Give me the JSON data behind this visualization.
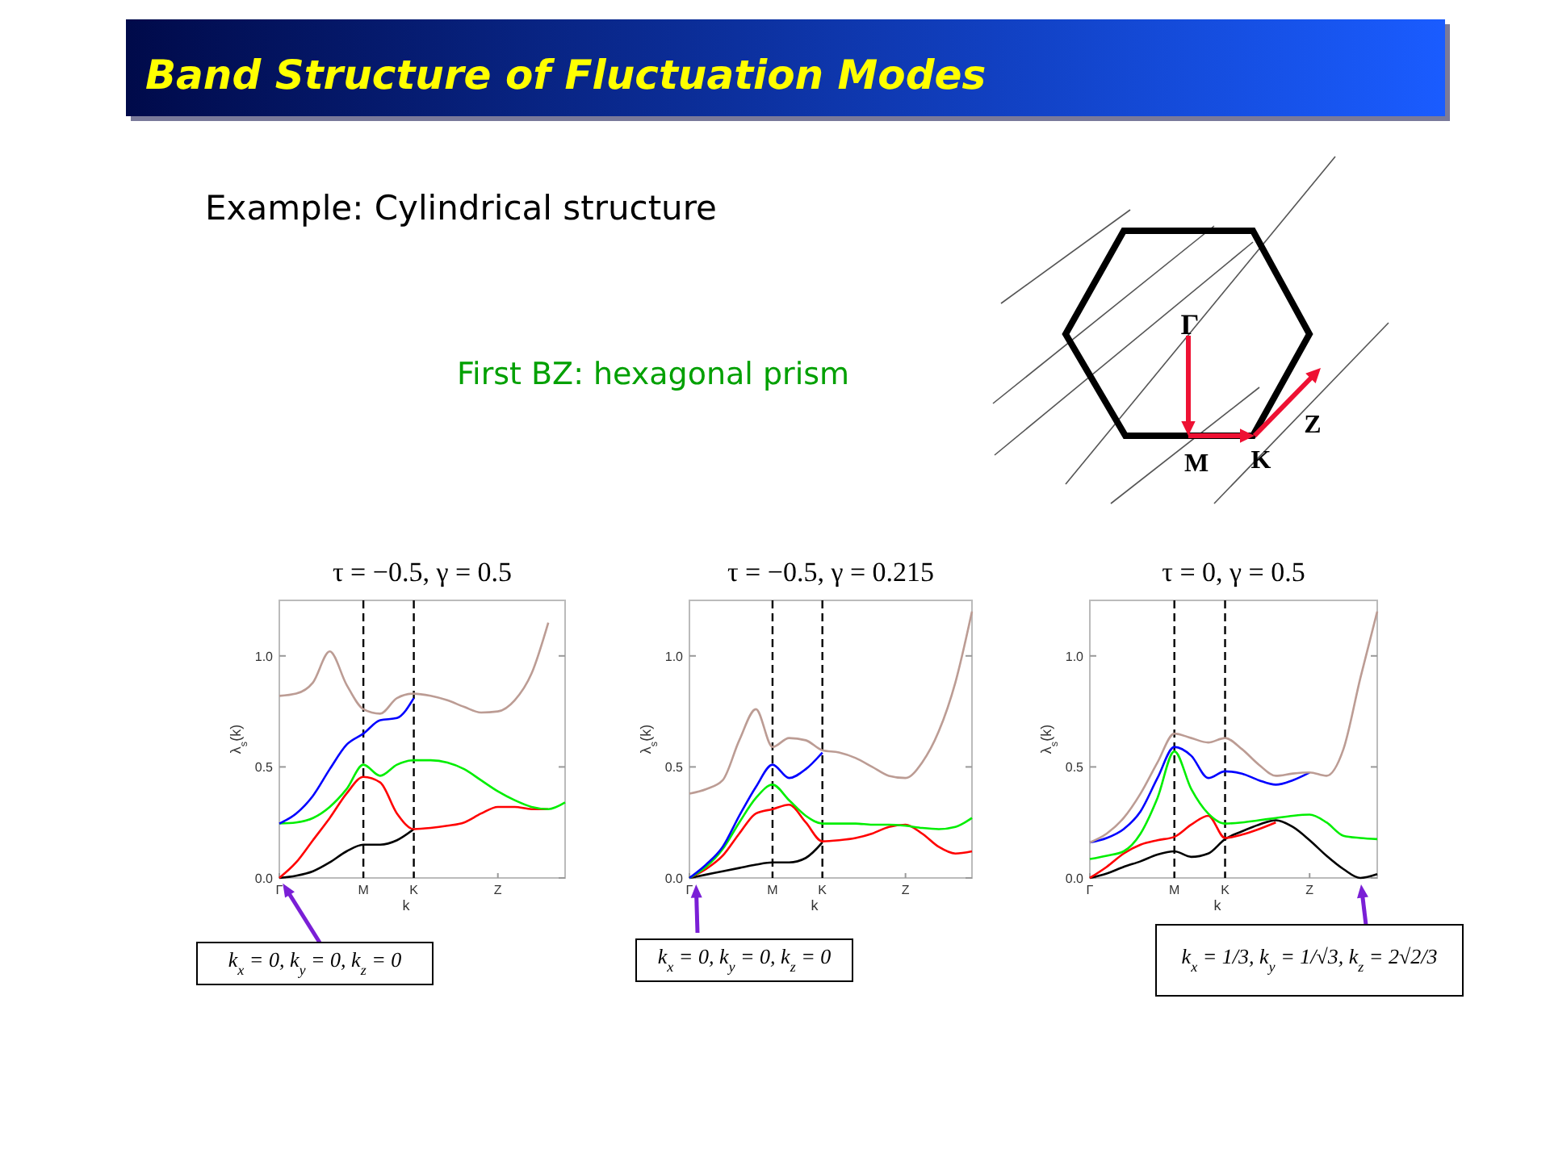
{
  "chart_data": [
    {
      "type": "line",
      "title": "τ = −0.5, γ = 0.5",
      "xlabel": "k",
      "ylabel": "λ$_{s}$(k)",
      "ylim": [
        0,
        1.25
      ],
      "categories": [
        "Γ",
        null,
        null,
        null,
        null,
        "M",
        null,
        null,
        "K",
        null,
        null,
        null,
        null,
        "Z",
        null,
        null,
        null,
        null
      ],
      "yticks": [
        {
          "value": 0,
          "label": "0.0"
        },
        {
          "value": 0.5,
          "label": "0.5"
        },
        {
          "value": 1,
          "label": "1.0"
        }
      ],
      "ref_lines": [
        {
          "axis": "x",
          "value": "M",
          "color": "#000000",
          "line_style": "dashed"
        },
        {
          "axis": "x",
          "value": "K",
          "color": "#000000",
          "line_style": "dashed"
        }
      ],
      "series": [
        {
          "color": "#000000",
          "values": [
            0,
            0.01,
            0.03,
            0.07,
            0.12,
            0.15,
            0.15,
            0.17,
            0.22,
            null,
            null,
            null,
            null,
            null,
            null,
            null,
            null,
            null
          ]
        },
        {
          "color": "#ff0000",
          "values": [
            0,
            0.07,
            0.17,
            0.27,
            0.38,
            0.455,
            0.43,
            0.29,
            0.22,
            0.225,
            0.235,
            0.25,
            0.29,
            0.32,
            0.32,
            0.31,
            0.31,
            null
          ]
        },
        {
          "color": "#00ee00",
          "values": [
            0.245,
            0.25,
            0.27,
            0.32,
            0.4,
            0.51,
            0.46,
            0.51,
            0.53,
            0.53,
            0.52,
            0.49,
            0.44,
            0.39,
            0.35,
            0.32,
            0.31,
            0.34
          ]
        },
        {
          "color": "#0000ff",
          "values": [
            0.245,
            0.29,
            0.37,
            0.49,
            0.6,
            0.65,
            0.71,
            0.72,
            0.81,
            null,
            null,
            null,
            null,
            null,
            null,
            null,
            null,
            null
          ]
        },
        {
          "color": "#bc9c94",
          "values": [
            0.82,
            0.83,
            0.88,
            1.02,
            0.87,
            0.76,
            0.74,
            0.81,
            0.83,
            0.82,
            0.8,
            0.77,
            0.745,
            0.75,
            0.8,
            0.92,
            1.15,
            null
          ]
        }
      ],
      "annotations": [
        "Band Structure of Fluctuation Modes",
        "Example: Cylindrical structure",
        "First BZ: hexagonal prism",
        "Γ",
        "M",
        "K",
        "Z",
        "k$_{x}$ = 0, k$_{y}$ = 0, k$_{z}$ = 0"
      ]
    },
    {
      "type": "line",
      "title": "τ = −0.5, γ = 0.215",
      "xlabel": "k",
      "ylabel": "λ$_{s}$(k)",
      "ylim": [
        0,
        1.25
      ],
      "categories": [
        "Γ",
        null,
        null,
        null,
        null,
        "M",
        null,
        null,
        "K",
        null,
        null,
        null,
        null,
        "Z",
        null,
        null,
        null,
        null
      ],
      "yticks": [
        {
          "value": 0,
          "label": "0.0"
        },
        {
          "value": 0.5,
          "label": "0.5"
        },
        {
          "value": 1,
          "label": "1.0"
        }
      ],
      "ref_lines": [
        {
          "axis": "x",
          "value": "M",
          "color": "#000000",
          "line_style": "dashed"
        },
        {
          "axis": "x",
          "value": "K",
          "color": "#000000",
          "line_style": "dashed"
        }
      ],
      "series": [
        {
          "color": "#000000",
          "values": [
            0,
            0.015,
            0.03,
            0.045,
            0.06,
            0.07,
            0.07,
            0.09,
            0.16,
            null,
            null,
            null,
            null,
            null,
            null,
            null,
            null,
            null
          ]
        },
        {
          "color": "#ff0000",
          "values": [
            0,
            0.04,
            0.1,
            0.2,
            0.29,
            0.31,
            0.33,
            0.25,
            0.165,
            0.17,
            0.18,
            0.2,
            0.23,
            0.24,
            0.2,
            0.14,
            0.11,
            0.12
          ]
        },
        {
          "color": "#00ee00",
          "values": [
            0,
            0.05,
            0.13,
            0.25,
            0.36,
            0.42,
            0.35,
            0.28,
            0.245,
            0.245,
            0.245,
            0.24,
            0.24,
            0.235,
            0.225,
            0.22,
            0.23,
            0.27
          ]
        },
        {
          "color": "#0000ff",
          "values": [
            0,
            0.06,
            0.14,
            0.28,
            0.41,
            0.51,
            0.45,
            0.49,
            0.565,
            null,
            null,
            null,
            null,
            null,
            null,
            null,
            null,
            null
          ]
        },
        {
          "color": "#bc9c94",
          "values": [
            0.38,
            0.4,
            0.44,
            0.62,
            0.76,
            0.59,
            0.63,
            0.62,
            0.575,
            0.565,
            0.54,
            0.5,
            0.46,
            0.45,
            0.52,
            0.66,
            0.88,
            1.2
          ]
        }
      ],
      "annotations": [
        "k$_{x}$ = 0, k$_{y}$ = 0, k$_{z}$ = 0"
      ]
    },
    {
      "type": "line",
      "title": "τ = 0, γ = 0.5",
      "xlabel": "k",
      "ylabel": "λ$_{s}$(k)",
      "ylim": [
        0,
        1.25
      ],
      "categories": [
        "Γ",
        null,
        null,
        null,
        null,
        "M",
        null,
        null,
        "K",
        null,
        null,
        null,
        null,
        "Z",
        null,
        null,
        null,
        null
      ],
      "yticks": [
        {
          "value": 0,
          "label": "0.0"
        },
        {
          "value": 0.5,
          "label": "0.5"
        },
        {
          "value": 1,
          "label": "1.0"
        }
      ],
      "ref_lines": [
        {
          "axis": "x",
          "value": "M",
          "color": "#000000",
          "line_style": "dashed"
        },
        {
          "axis": "x",
          "value": "K",
          "color": "#000000",
          "line_style": "dashed"
        }
      ],
      "series": [
        {
          "color": "#000000",
          "values": [
            0,
            0.02,
            0.05,
            0.075,
            0.105,
            0.12,
            0.095,
            0.11,
            0.175,
            0.21,
            0.24,
            0.26,
            0.23,
            0.17,
            0.1,
            0.04,
            0,
            0.017
          ]
        },
        {
          "color": "#ff0000",
          "values": [
            0,
            0.05,
            0.11,
            0.15,
            0.17,
            0.185,
            0.24,
            0.28,
            0.18,
            0.195,
            0.22,
            0.25,
            null,
            null,
            null,
            null,
            null,
            null
          ]
        },
        {
          "color": "#00ee00",
          "values": [
            0.085,
            0.1,
            0.12,
            0.2,
            0.36,
            0.57,
            0.4,
            0.29,
            0.245,
            0.25,
            0.26,
            0.27,
            0.28,
            0.285,
            0.25,
            0.19,
            0.18,
            0.175
          ]
        },
        {
          "color": "#0000ff",
          "values": [
            0.16,
            0.18,
            0.22,
            0.3,
            0.45,
            0.59,
            0.55,
            0.45,
            0.48,
            0.47,
            0.44,
            0.42,
            0.44,
            0.475,
            null,
            null,
            null,
            null
          ]
        },
        {
          "color": "#bc9c94",
          "values": [
            0.16,
            0.2,
            0.27,
            0.38,
            0.52,
            0.65,
            0.63,
            0.61,
            0.63,
            0.58,
            0.51,
            0.46,
            0.47,
            0.475,
            0.46,
            0.58,
            0.9,
            1.2
          ]
        }
      ],
      "annotations": [
        "k$_{x}$ = 1/3, k$_{y}$ = 1/√3, k$_{z}$ = 2√2/3"
      ]
    }
  ]
}
